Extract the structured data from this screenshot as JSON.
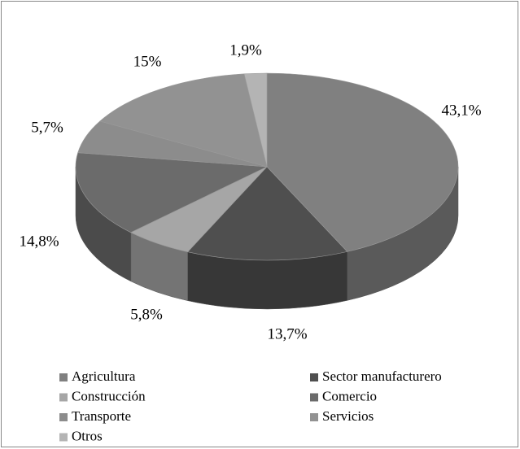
{
  "chart_data": {
    "type": "pie",
    "categories": [
      "Agricultura",
      "Sector manufacturero",
      "Construcción",
      "Comercio",
      "Transporte",
      "Servicios",
      "Otros"
    ],
    "values": [
      43.1,
      13.7,
      5.8,
      14.8,
      5.7,
      15,
      1.9
    ],
    "value_labels": [
      "43,1%",
      "13,7%",
      "5,8%",
      "14,8%",
      "5,7%",
      "15%",
      "1,9%"
    ],
    "colors": [
      "#808080",
      "#4f4f4f",
      "#a6a6a6",
      "#6b6b6b",
      "#8c8c8c",
      "#929292",
      "#b4b4b4"
    ],
    "legend": "bottom"
  }
}
